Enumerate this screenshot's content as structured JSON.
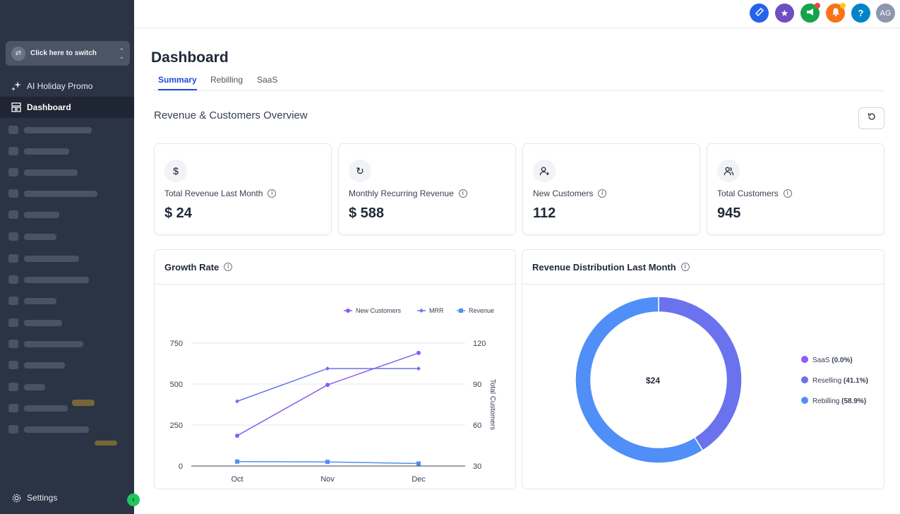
{
  "sidebar": {
    "switcher_label": "Click here to switch",
    "items": [
      {
        "label": "AI Holiday Promo"
      },
      {
        "label": "Dashboard"
      }
    ],
    "settings_label": "Settings"
  },
  "topbar": {
    "avatar_initials": "AG",
    "help_label": "?"
  },
  "page": {
    "title": "Dashboard",
    "tabs": [
      {
        "label": "Summary"
      },
      {
        "label": "Rebilling"
      },
      {
        "label": "SaaS"
      }
    ],
    "section_title": "Revenue & Customers Overview"
  },
  "stats": [
    {
      "icon": "$",
      "label": "Total Revenue Last Month",
      "value": "$ 24"
    },
    {
      "icon": "↻",
      "label": "Monthly Recurring Revenue",
      "value": "$ 588"
    },
    {
      "icon": "user-plus",
      "label": "New Customers",
      "value": "112"
    },
    {
      "icon": "users",
      "label": "Total Customers",
      "value": "945"
    }
  ],
  "growth": {
    "title": "Growth Rate"
  },
  "distribution": {
    "title": "Revenue Distribution Last Month",
    "center_label": "$24"
  },
  "colors": {
    "sidebar_bg": "#2b3445",
    "new_customers": "#8b5cf6",
    "mrr": "#6a72ee",
    "revenue": "#4f8ff7",
    "saas": "#8b5cf6",
    "reselling": "#6a72ee",
    "rebilling": "#4f8ff7"
  },
  "chart_data": [
    {
      "type": "line",
      "title": "Growth Rate",
      "categories": [
        "Oct",
        "Nov",
        "Dec"
      ],
      "y_left_ticks": [
        "0",
        "250",
        "500",
        "750"
      ],
      "y_right_ticks": [
        "30",
        "60",
        "90",
        "120"
      ],
      "ylim_left": [
        0,
        750
      ],
      "ylim_right": [
        30,
        120
      ],
      "y_right_label": "Total Customers",
      "legend_position": "top-right",
      "series": [
        {
          "name": "New Customers",
          "axis": "left",
          "marker": "circle",
          "values": [
            185,
            495,
            690
          ]
        },
        {
          "name": "MRR",
          "axis": "left",
          "marker": "diamond",
          "values": [
            395,
            595,
            595
          ]
        },
        {
          "name": "Revenue",
          "axis": "left",
          "marker": "square",
          "values": [
            27,
            25,
            15
          ]
        }
      ]
    },
    {
      "type": "pie",
      "title": "Revenue Distribution Last Month",
      "center_label": "$24",
      "slices": [
        {
          "name": "SaaS",
          "pct": 0.0,
          "label": "(0.0%)"
        },
        {
          "name": "Reselling",
          "pct": 41.1,
          "label": "(41.1%)"
        },
        {
          "name": "Rebilling",
          "pct": 58.9,
          "label": "(58.9%)"
        }
      ]
    }
  ]
}
